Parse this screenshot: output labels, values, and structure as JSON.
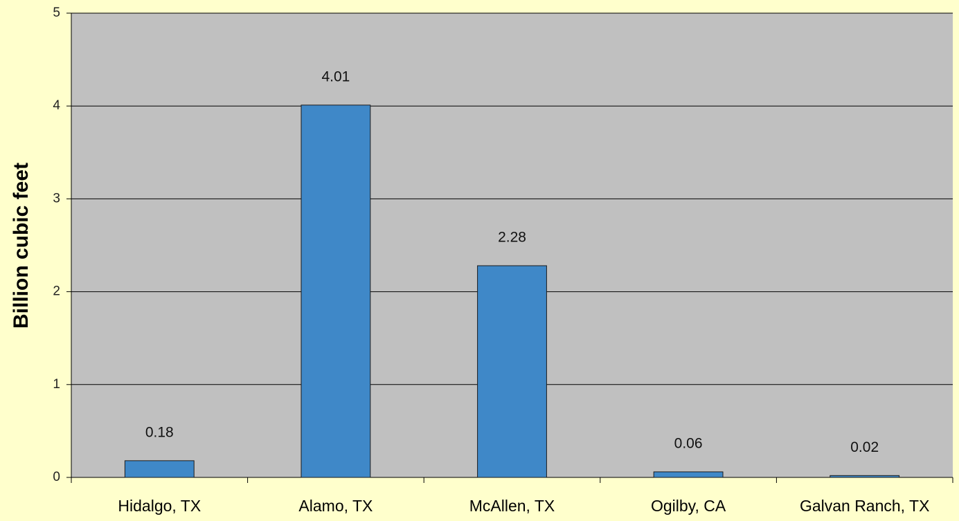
{
  "chart_data": {
    "type": "bar",
    "y_label": "Billion cubic feet",
    "categories": [
      "Hidalgo, TX",
      "Alamo, TX",
      "McAllen, TX",
      "Ogilby, CA",
      "Galvan Ranch, TX"
    ],
    "values": [
      0.18,
      4.01,
      2.28,
      0.06,
      0.02
    ],
    "color": "#3f88c8",
    "ylim": [
      0,
      5
    ],
    "yticks": [
      0,
      1,
      2,
      3,
      4,
      5
    ],
    "grid": true
  }
}
